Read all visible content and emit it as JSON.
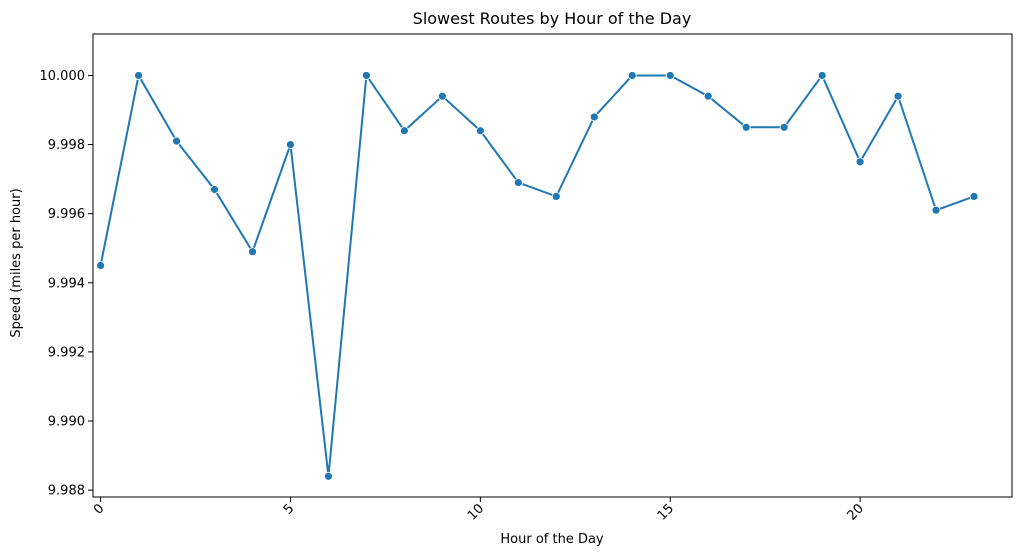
{
  "chart_data": {
    "type": "line",
    "title": "Slowest Routes by Hour of the Day",
    "xlabel": "Hour of the Day",
    "ylabel": "Speed (miles per hour)",
    "xlim": [
      -0.2,
      24.0
    ],
    "ylim": [
      9.9878,
      10.0012
    ],
    "xticks": [
      0,
      5,
      10,
      15,
      20
    ],
    "yticks": [
      9.988,
      9.99,
      9.992,
      9.994,
      9.996,
      9.998,
      10.0
    ],
    "ytick_labels": [
      "9.988",
      "9.990",
      "9.992",
      "9.994",
      "9.996",
      "9.998",
      "10.000"
    ],
    "grid": false,
    "series_color": "#1f77b4",
    "marker": "circle",
    "x": [
      0,
      1,
      2,
      3,
      4,
      5,
      6,
      7,
      8,
      9,
      10,
      11,
      12,
      13,
      14,
      15,
      16,
      17,
      18,
      19,
      20,
      21,
      22,
      23
    ],
    "values": [
      9.9945,
      10.0,
      9.9981,
      9.9967,
      9.9949,
      9.998,
      9.9884,
      10.0,
      9.9984,
      9.9994,
      9.9984,
      9.9969,
      9.9965,
      9.9988,
      10.0,
      10.0,
      9.9994,
      9.9985,
      9.9985,
      10.0,
      9.9975,
      9.9994,
      9.9961,
      9.9965
    ]
  }
}
